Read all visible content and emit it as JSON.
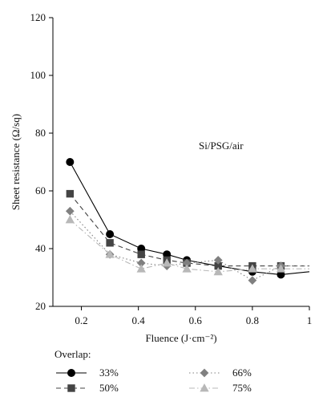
{
  "chart_data": {
    "type": "line",
    "xlabel": "Fluence (J·cm⁻²)",
    "ylabel": "Sheet resistance (Ω/sq)",
    "annotation": "Si/PSG/air",
    "xlim": [
      0.1,
      1.0
    ],
    "ylim": [
      20,
      120
    ],
    "x_ticks": [
      0.2,
      0.4,
      0.6,
      0.8,
      1.0
    ],
    "x_tick_labels": [
      "0.2",
      "0.4",
      "0.6",
      "0.8",
      "1"
    ],
    "y_ticks": [
      20,
      40,
      60,
      80,
      100,
      120
    ],
    "y_tick_labels": [
      "20",
      "40",
      "60",
      "80",
      "100",
      "120"
    ],
    "grid": false,
    "legend": {
      "title": "Overlap:",
      "placement": "bottom"
    },
    "series": [
      {
        "name": "33%",
        "marker": "circle",
        "line": "solid",
        "color": "#000000",
        "x": [
          0.16,
          0.3,
          0.41,
          0.5,
          0.57,
          0.68,
          0.8,
          0.9,
          1.0
        ],
        "y": [
          70,
          45,
          40,
          38,
          36,
          34,
          32,
          31,
          32
        ],
        "marked": [
          true,
          true,
          true,
          true,
          true,
          false,
          true,
          true,
          false
        ]
      },
      {
        "name": "50%",
        "marker": "square",
        "line": "dashed",
        "color": "#444444",
        "x": [
          0.16,
          0.3,
          0.41,
          0.5,
          0.57,
          0.68,
          0.8,
          0.9,
          1.0
        ],
        "y": [
          59,
          42,
          38,
          36,
          35,
          34,
          34,
          34,
          34
        ],
        "marked": [
          true,
          true,
          true,
          true,
          true,
          true,
          true,
          true,
          false
        ]
      },
      {
        "name": "66%",
        "marker": "diamond",
        "line": "dotted",
        "color": "#808080",
        "x": [
          0.16,
          0.3,
          0.41,
          0.5,
          0.57,
          0.68,
          0.8,
          0.9,
          1.0
        ],
        "y": [
          53,
          38,
          35,
          34,
          35,
          36,
          29,
          34,
          34
        ],
        "marked": [
          true,
          true,
          true,
          true,
          true,
          true,
          true,
          true,
          false
        ]
      },
      {
        "name": "75%",
        "marker": "triangle",
        "line": "dashdot",
        "color": "#b8b8b8",
        "x": [
          0.16,
          0.3,
          0.41,
          0.5,
          0.57,
          0.68,
          0.8,
          0.9,
          1.0
        ],
        "y": [
          50,
          38,
          33,
          35,
          33,
          32,
          33,
          33,
          33
        ],
        "marked": [
          true,
          true,
          true,
          true,
          true,
          true,
          true,
          true,
          false
        ]
      }
    ]
  }
}
